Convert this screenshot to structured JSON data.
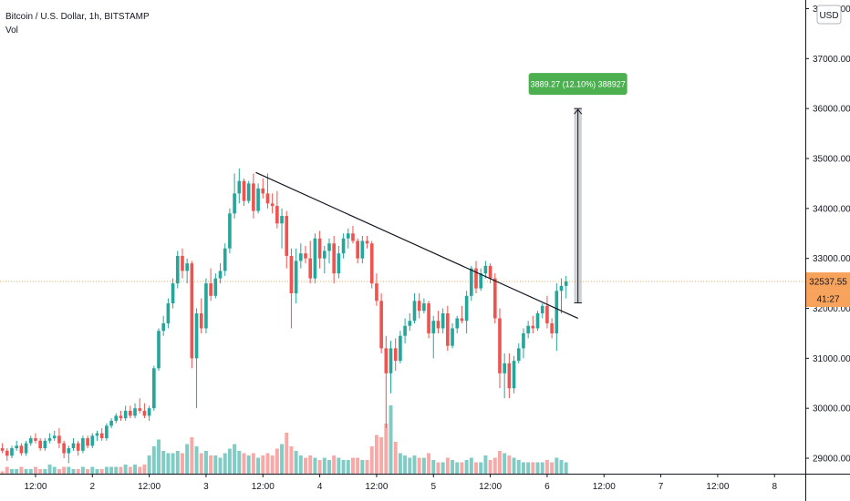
{
  "chart_title": "Bitcoin / U.S. Dollar, 1h, BITSTAMP",
  "volume_label": "Vol",
  "currency_label": "USD",
  "chart_data": {
    "type": "candlestick",
    "y_axis": {
      "ticks": [
        29000,
        30000,
        31000,
        32000,
        33000,
        34000,
        35000,
        36000,
        37000,
        38000
      ],
      "tick_labels": [
        "29000.00",
        "30000.00",
        "31000.00",
        "32000.00",
        "33000.00",
        "34000.00",
        "35000.00",
        "36000.00",
        "37000.00",
        "38000.00"
      ],
      "range": [
        28800,
        38100
      ]
    },
    "x_axis": {
      "tick_labels": [
        "12:00",
        "2",
        "12:00",
        "3",
        "12:00",
        "4",
        "12:00",
        "5",
        "12:00",
        "6",
        "12:00",
        "7",
        "12:00",
        "8"
      ],
      "tick_hours": [
        12,
        24,
        36,
        48,
        60,
        72,
        84,
        96,
        108,
        120,
        132,
        144,
        156,
        168
      ],
      "range_hours": [
        4.5,
        174.5
      ]
    },
    "current_price": "32537.55",
    "countdown": "41:27",
    "colors": {
      "up": "#26a69a",
      "down": "#ef5350",
      "up_volume": "#80cbc4",
      "down_volume": "#f7a9a7",
      "price_line": "#f7a35c",
      "annotation": "#4caf50"
    },
    "ohlcv": [
      [
        5,
        29200,
        29300,
        29100,
        29150,
        1
      ],
      [
        6,
        29150,
        29200,
        28950,
        29050,
        3
      ],
      [
        7,
        29050,
        29250,
        29000,
        29200,
        2
      ],
      [
        8,
        29200,
        29350,
        29150,
        29250,
        2
      ],
      [
        9,
        29250,
        29300,
        29050,
        29100,
        3
      ],
      [
        10,
        29100,
        29350,
        29050,
        29300,
        2
      ],
      [
        11,
        29300,
        29450,
        29250,
        29400,
        2
      ],
      [
        12,
        29400,
        29500,
        29300,
        29350,
        3
      ],
      [
        13,
        29350,
        29400,
        29150,
        29200,
        2
      ],
      [
        14,
        29200,
        29400,
        29150,
        29350,
        2
      ],
      [
        15,
        29350,
        29500,
        29300,
        29400,
        4
      ],
      [
        16,
        29400,
        29550,
        29350,
        29450,
        3
      ],
      [
        17,
        29450,
        29600,
        29200,
        29300,
        2
      ],
      [
        18,
        29300,
        29350,
        29000,
        29100,
        3
      ],
      [
        19,
        29100,
        29250,
        28900,
        29200,
        3
      ],
      [
        20,
        29200,
        29400,
        29150,
        29300,
        2
      ],
      [
        21,
        29300,
        29350,
        29050,
        29150,
        2
      ],
      [
        22,
        29150,
        29450,
        29100,
        29400,
        3
      ],
      [
        23,
        29400,
        29450,
        29200,
        29250,
        2
      ],
      [
        24,
        29250,
        29500,
        29200,
        29450,
        3
      ],
      [
        25,
        29450,
        29550,
        29350,
        29500,
        2
      ],
      [
        26,
        29500,
        29600,
        29350,
        29400,
        2
      ],
      [
        27,
        29400,
        29700,
        29350,
        29650,
        3
      ],
      [
        28,
        29650,
        29800,
        29600,
        29750,
        3
      ],
      [
        29,
        29750,
        29900,
        29700,
        29850,
        3
      ],
      [
        30,
        29850,
        29950,
        29750,
        29800,
        3
      ],
      [
        31,
        29800,
        30050,
        29750,
        29950,
        4
      ],
      [
        32,
        29950,
        30050,
        29800,
        29850,
        3
      ],
      [
        33,
        29850,
        30100,
        29800,
        30000,
        4
      ],
      [
        34,
        30000,
        30200,
        29900,
        29950,
        3
      ],
      [
        35,
        29950,
        30100,
        29800,
        29850,
        4
      ],
      [
        36,
        29850,
        30050,
        29750,
        30000,
        8
      ],
      [
        37,
        30000,
        30850,
        29950,
        30800,
        12
      ],
      [
        38,
        30800,
        31600,
        30750,
        31550,
        15
      ],
      [
        39,
        31550,
        31850,
        31450,
        31700,
        10
      ],
      [
        40,
        31700,
        32200,
        31600,
        32100,
        9
      ],
      [
        41,
        32100,
        32600,
        32000,
        32500,
        9
      ],
      [
        42,
        32500,
        33150,
        32400,
        33050,
        10
      ],
      [
        43,
        33050,
        33200,
        32600,
        32750,
        9
      ],
      [
        44,
        32750,
        33000,
        32500,
        32900,
        13
      ],
      [
        45,
        32900,
        32950,
        30800,
        31000,
        16
      ],
      [
        46,
        31000,
        32000,
        30000,
        31900,
        12
      ],
      [
        47,
        31900,
        32200,
        31500,
        31600,
        9
      ],
      [
        48,
        31600,
        32600,
        31500,
        32500,
        10
      ],
      [
        49,
        32500,
        32800,
        32150,
        32250,
        8
      ],
      [
        50,
        32250,
        32700,
        32200,
        32600,
        8
      ],
      [
        51,
        32600,
        32900,
        32500,
        32750,
        7
      ],
      [
        52,
        32750,
        33300,
        32650,
        33200,
        9
      ],
      [
        53,
        33200,
        34000,
        33100,
        33900,
        11
      ],
      [
        54,
        33900,
        34700,
        33800,
        34300,
        13
      ],
      [
        55,
        34300,
        34800,
        34100,
        34550,
        10
      ],
      [
        56,
        34550,
        34600,
        34050,
        34150,
        9
      ],
      [
        57,
        34150,
        34550,
        34100,
        34500,
        8
      ],
      [
        58,
        34500,
        34700,
        33800,
        33950,
        9
      ],
      [
        59,
        33950,
        34500,
        33900,
        34400,
        7
      ],
      [
        60,
        34400,
        34600,
        34200,
        34300,
        8
      ],
      [
        61,
        34300,
        34700,
        34000,
        34100,
        9
      ],
      [
        62,
        34100,
        34300,
        33900,
        34050,
        8
      ],
      [
        63,
        34050,
        34350,
        33600,
        33700,
        11
      ],
      [
        64,
        33700,
        34000,
        33200,
        33850,
        13
      ],
      [
        65,
        33850,
        33950,
        32800,
        33050,
        18
      ],
      [
        66,
        33050,
        33200,
        31600,
        32300,
        12
      ],
      [
        67,
        32300,
        33200,
        32100,
        32950,
        10
      ],
      [
        68,
        32950,
        33300,
        32800,
        33100,
        8
      ],
      [
        69,
        33100,
        33250,
        32900,
        33000,
        7
      ],
      [
        70,
        33000,
        33350,
        32500,
        32600,
        8
      ],
      [
        71,
        32600,
        33500,
        32500,
        33400,
        7
      ],
      [
        72,
        33400,
        33550,
        32800,
        33000,
        6
      ],
      [
        73,
        33000,
        33250,
        32700,
        33150,
        7
      ],
      [
        74,
        33150,
        33400,
        32900,
        33300,
        6
      ],
      [
        75,
        33300,
        33450,
        32500,
        32700,
        8
      ],
      [
        76,
        32700,
        33250,
        32600,
        33100,
        7
      ],
      [
        77,
        33100,
        33500,
        33000,
        33400,
        6
      ],
      [
        78,
        33400,
        33600,
        33200,
        33500,
        6
      ],
      [
        79,
        33500,
        33650,
        33300,
        33350,
        7
      ],
      [
        80,
        33350,
        33400,
        32900,
        33000,
        7
      ],
      [
        81,
        33000,
        33450,
        32900,
        33350,
        6
      ],
      [
        82,
        33350,
        33450,
        33200,
        33300,
        6
      ],
      [
        83,
        33300,
        33350,
        32400,
        32500,
        12
      ],
      [
        84,
        32500,
        32700,
        32050,
        32150,
        17
      ],
      [
        85,
        32150,
        32300,
        31100,
        31200,
        16
      ],
      [
        86,
        31200,
        31450,
        29600,
        30700,
        22
      ],
      [
        87,
        30700,
        31350,
        30300,
        31200,
        30
      ],
      [
        88,
        31200,
        31400,
        30750,
        30950,
        14
      ],
      [
        89,
        30950,
        31550,
        30900,
        31450,
        9
      ],
      [
        90,
        31450,
        31800,
        31300,
        31650,
        8
      ],
      [
        91,
        31650,
        31900,
        31550,
        31750,
        7
      ],
      [
        92,
        31750,
        32300,
        31700,
        32150,
        8
      ],
      [
        93,
        32150,
        32300,
        31800,
        31950,
        7
      ],
      [
        94,
        31950,
        32200,
        31900,
        32100,
        7
      ],
      [
        95,
        32100,
        32150,
        31400,
        31500,
        9
      ],
      [
        96,
        31500,
        31850,
        31000,
        31750,
        6
      ],
      [
        97,
        31750,
        31950,
        31500,
        31600,
        5
      ],
      [
        98,
        31600,
        32000,
        31500,
        31900,
        5
      ],
      [
        99,
        31900,
        32050,
        31150,
        31250,
        7
      ],
      [
        100,
        31250,
        31700,
        31200,
        31600,
        6
      ],
      [
        101,
        31600,
        31850,
        31500,
        31800,
        5
      ],
      [
        102,
        31800,
        32050,
        31700,
        31750,
        5
      ],
      [
        103,
        31750,
        32350,
        31500,
        32250,
        6
      ],
      [
        104,
        32250,
        32850,
        32150,
        32800,
        7
      ],
      [
        105,
        32800,
        32950,
        32300,
        32400,
        5
      ],
      [
        106,
        32400,
        32800,
        32350,
        32700,
        5
      ],
      [
        107,
        32700,
        32950,
        32600,
        32850,
        8
      ],
      [
        108,
        32850,
        32900,
        32500,
        32600,
        6
      ],
      [
        109,
        32600,
        32700,
        31700,
        31800,
        7
      ],
      [
        110,
        31800,
        32000,
        30400,
        30700,
        10
      ],
      [
        111,
        30700,
        31100,
        30200,
        30900,
        9
      ],
      [
        112,
        30900,
        31100,
        30200,
        30400,
        8
      ],
      [
        113,
        30400,
        31050,
        30300,
        30950,
        7
      ],
      [
        114,
        30950,
        31300,
        30900,
        31200,
        6
      ],
      [
        115,
        31200,
        31600,
        31000,
        31500,
        5
      ],
      [
        116,
        31500,
        31750,
        31400,
        31650,
        5
      ],
      [
        117,
        31650,
        31850,
        31500,
        31600,
        5
      ],
      [
        118,
        31600,
        31950,
        31550,
        31900,
        5
      ],
      [
        119,
        31900,
        32100,
        31800,
        32050,
        5
      ],
      [
        120,
        32050,
        32250,
        31600,
        31700,
        6
      ],
      [
        121,
        31700,
        31800,
        31400,
        31500,
        5
      ],
      [
        122,
        31500,
        32500,
        31150,
        32350,
        7
      ],
      [
        123,
        32350,
        32600,
        31900,
        32450,
        6
      ],
      [
        124,
        32450,
        32650,
        32200,
        32537.55,
        5
      ]
    ],
    "trendline": {
      "from": [
        58.5,
        34720
      ],
      "to": [
        126.5,
        31800
      ]
    },
    "measure": {
      "x0": 125.7,
      "x1": 127.3,
      "from_price": 32110,
      "to_price": 36000,
      "label": "3889.27 (12.10%) 388927"
    }
  }
}
